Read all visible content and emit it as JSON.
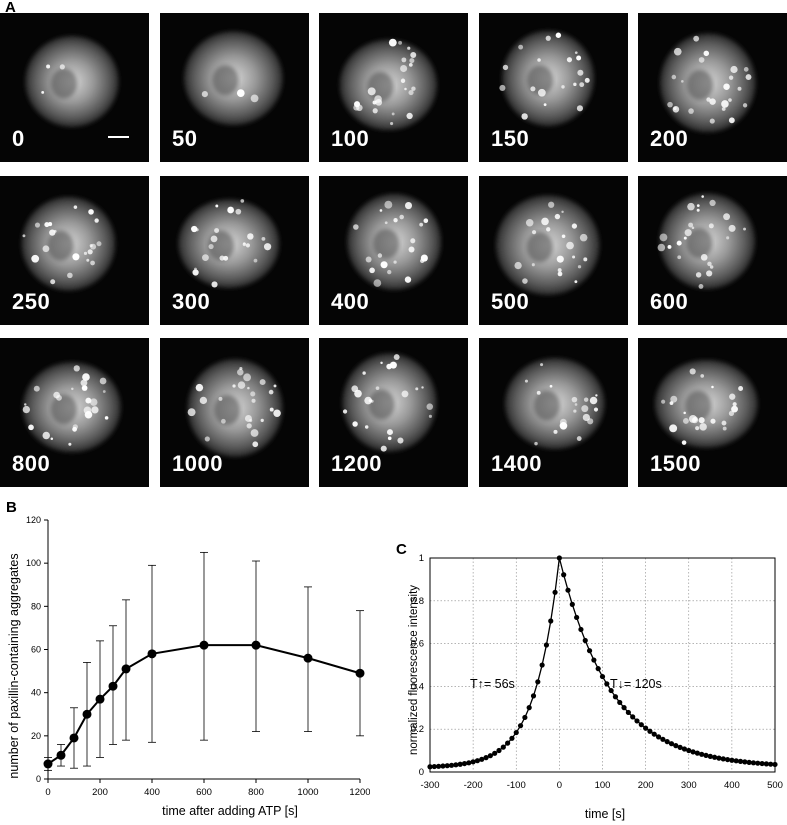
{
  "panels": {
    "a_letter": "A",
    "b_letter": "B",
    "c_letter": "C"
  },
  "micrographs": {
    "time_labels": [
      "0",
      "50",
      "100",
      "150",
      "200",
      "250",
      "300",
      "400",
      "500",
      "600",
      "800",
      "1000",
      "1200",
      "1400",
      "1500"
    ],
    "has_scale_bar_on_first": true
  },
  "chart_data": [
    {
      "type": "line",
      "panel": "B",
      "xlabel": "time after adding ATP [s]",
      "ylabel": "number of paxillin-containing aggregates",
      "xlim": [
        0,
        1200
      ],
      "ylim": [
        0,
        120
      ],
      "xticks": [
        "0",
        "200",
        "400",
        "600",
        "800",
        "1000",
        "1200"
      ],
      "yticks": [
        "0",
        "20",
        "40",
        "60",
        "80",
        "100",
        "120"
      ],
      "grid": false,
      "series": [
        {
          "x": [
            0,
            50,
            100,
            150,
            200,
            250,
            300,
            400,
            600,
            800,
            1000,
            1200
          ],
          "y": [
            7,
            11,
            19,
            30,
            37,
            43,
            51,
            58,
            62,
            62,
            56,
            49
          ],
          "err_low": [
            4,
            6,
            5,
            6,
            10,
            16,
            18,
            17,
            18,
            22,
            22,
            20
          ],
          "err_high": [
            10,
            16,
            33,
            54,
            64,
            71,
            83,
            99,
            105,
            101,
            89,
            78
          ]
        }
      ]
    },
    {
      "type": "line",
      "panel": "C",
      "xlabel": "time [s]",
      "ylabel": "normalized fluorescence intensity",
      "xlim": [
        -300,
        500
      ],
      "ylim": [
        0,
        1
      ],
      "xticks": [
        "-300",
        "-200",
        "-100",
        "0",
        "100",
        "200",
        "300",
        "400",
        "500"
      ],
      "yticks": [
        "0",
        "0.2",
        "0.4",
        "0.6",
        "0.8",
        "1"
      ],
      "grid": true,
      "annotations": {
        "rise": "T↑= 56s",
        "decay": "T↓= 120s"
      },
      "tau_rise": 56,
      "tau_decay": 120,
      "x_start": -300,
      "x_end": 500,
      "x_step": 10,
      "baseline": 0.02
    }
  ]
}
